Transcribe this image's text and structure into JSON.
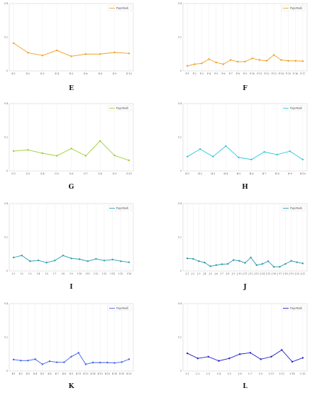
{
  "chart_data": [
    {
      "panel_letter": "E",
      "type": "line",
      "legend": "PageRank",
      "color": "#f0a020",
      "ylim": [
        0,
        0.4
      ],
      "y_ticks": [
        "0",
        "0.2",
        "0.4"
      ],
      "categories": [
        "E-1",
        "E-2",
        "E-3",
        "E-4",
        "E-5",
        "E-6",
        "E-8",
        "E-9",
        "E-10"
      ],
      "values": [
        0.165,
        0.108,
        0.092,
        0.122,
        0.087,
        0.1,
        0.1,
        0.11,
        0.104
      ]
    },
    {
      "panel_letter": "F",
      "type": "line",
      "legend": "PageRank",
      "color": "#f0a020",
      "ylim": [
        0,
        0.4
      ],
      "y_ticks": [
        "0",
        "0.2",
        "0.4"
      ],
      "categories": [
        "F-1",
        "F-2",
        "F-3",
        "F-4",
        "F-5",
        "F-6",
        "F-7",
        "F-8",
        "F-9",
        "F-10",
        "F-11",
        "F-12",
        "F-13",
        "F-14",
        "F-15",
        "F-16",
        "F-17"
      ],
      "values": [
        0.03,
        0.04,
        0.045,
        0.07,
        0.05,
        0.04,
        0.065,
        0.055,
        0.055,
        0.075,
        0.065,
        0.06,
        0.095,
        0.065,
        0.06,
        0.06,
        0.058
      ]
    },
    {
      "panel_letter": "G",
      "type": "line",
      "legend": "PageRank",
      "color": "#9acd32",
      "ylim": [
        0,
        0.4
      ],
      "y_ticks": [
        "0",
        "0.2",
        "0.4"
      ],
      "categories": [
        "G-1",
        "G-3",
        "G-4",
        "G-5",
        "G-6",
        "G-7",
        "G-8",
        "G-9",
        "G-10"
      ],
      "values": [
        0.118,
        0.125,
        0.105,
        0.09,
        0.133,
        0.09,
        0.178,
        0.092,
        0.063
      ]
    },
    {
      "panel_letter": "H",
      "type": "line",
      "legend": "PageRank",
      "color": "#30c8d8",
      "ylim": [
        0,
        0.4
      ],
      "y_ticks": [
        "0",
        "0.2",
        "0.4"
      ],
      "categories": [
        "H-1",
        "H-2",
        "H-3",
        "H-4",
        "H-5",
        "H-6",
        "H-7",
        "H-8",
        "H-9",
        "H-10"
      ],
      "values": [
        0.085,
        0.13,
        0.085,
        0.148,
        0.08,
        0.068,
        0.113,
        0.097,
        0.117,
        0.068
      ]
    },
    {
      "panel_letter": "I",
      "type": "line",
      "legend": "PageRank",
      "color": "#2aa0b0",
      "ylim": [
        0,
        0.4
      ],
      "y_ticks": [
        "0",
        "0.2",
        "0.4"
      ],
      "categories": [
        "I-1",
        "I-2",
        "I-3",
        "I-4",
        "I-5",
        "I-7",
        "I-8",
        "I-9",
        "I-10",
        "I-11",
        "I-12",
        "I-13",
        "I-14",
        "I-15",
        "I-16"
      ],
      "values": [
        0.08,
        0.092,
        0.058,
        0.063,
        0.05,
        0.062,
        0.092,
        0.075,
        0.07,
        0.058,
        0.072,
        0.062,
        0.068,
        0.058,
        0.052
      ]
    },
    {
      "panel_letter": "J",
      "type": "line",
      "legend": "PageRank",
      "color": "#2a9ab0",
      "ylim": [
        0,
        0.4
      ],
      "y_ticks": [
        "0",
        "0.2",
        "0.4"
      ],
      "categories": [
        "J-1",
        "J-2",
        "J-3",
        "J-4",
        "J-5",
        "J-6",
        "J-7",
        "J-8",
        "J-9",
        "J-10",
        "J-11",
        "J-12",
        "J-13",
        "J-14",
        "J-15",
        "J-16",
        "J-17",
        "J-18",
        "J-19",
        "J-20",
        "J-21"
      ],
      "values": [
        0.075,
        0.072,
        0.058,
        0.05,
        0.028,
        0.035,
        0.04,
        0.042,
        0.065,
        0.06,
        0.048,
        0.08,
        0.035,
        0.042,
        0.058,
        0.025,
        0.025,
        0.042,
        0.06,
        0.052,
        0.045
      ]
    },
    {
      "panel_letter": "K",
      "type": "line",
      "legend": "PageRank",
      "color": "#4060e8",
      "ylim": [
        0,
        0.4
      ],
      "y_ticks": [
        "0",
        "0.2",
        "0.4"
      ],
      "categories": [
        "K-1",
        "K-2",
        "K-3",
        "K-4",
        "K-5",
        "K-6",
        "K-7",
        "K-8",
        "K-9",
        "K-11",
        "K-13",
        "K-14",
        "K-15",
        "K-16",
        "K-18",
        "K-19",
        "K-20"
      ],
      "values": [
        0.068,
        0.062,
        0.062,
        0.07,
        0.04,
        0.058,
        0.052,
        0.052,
        0.085,
        0.108,
        0.04,
        0.05,
        0.05,
        0.05,
        0.048,
        0.053,
        0.07
      ]
    },
    {
      "panel_letter": "L",
      "type": "line",
      "legend": "PageRank",
      "color": "#2020c8",
      "ylim": [
        0,
        0.4
      ],
      "y_ticks": [
        "0",
        "0.2",
        "0.4"
      ],
      "categories": [
        "L-1",
        "L-2",
        "L-3",
        "L-4",
        "L-5",
        "L-6",
        "L-7",
        "L-9",
        "L-11",
        "L-12",
        "L-14",
        "L-15"
      ],
      "values": [
        0.105,
        0.075,
        0.085,
        0.06,
        0.075,
        0.1,
        0.108,
        0.07,
        0.085,
        0.125,
        0.055,
        0.078
      ]
    }
  ]
}
